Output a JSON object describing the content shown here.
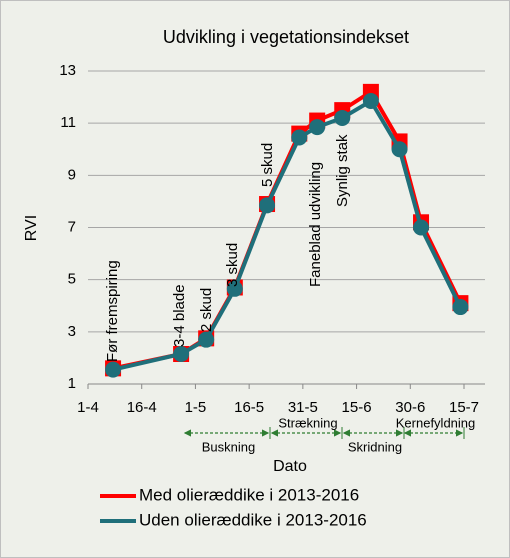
{
  "chart_data": {
    "type": "line",
    "title": "Udvikling i vegetationsindekset",
    "x_label": "Dato",
    "y_label": "RVI",
    "x": [
      98,
      117,
      124,
      132,
      141,
      150,
      155,
      162,
      170,
      178,
      184,
      195
    ],
    "xlim": [
      91,
      196
    ],
    "xticks": [
      {
        "value": 91,
        "label": "1-4"
      },
      {
        "value": 106,
        "label": "16-4"
      },
      {
        "value": 121,
        "label": "1-5"
      },
      {
        "value": 136,
        "label": "16-5"
      },
      {
        "value": 151,
        "label": "31-5"
      },
      {
        "value": 166,
        "label": "15-6"
      },
      {
        "value": 181,
        "label": "30-6"
      },
      {
        "value": 196,
        "label": "15-7"
      }
    ],
    "ylim": [
      1,
      13
    ],
    "yticks": [
      1,
      3,
      5,
      7,
      9,
      11,
      13
    ],
    "grid": true,
    "series": [
      {
        "name": "Med olieræddike i 2013-2016",
        "color": "#ff0000",
        "marker": "square",
        "values": [
          1.6,
          2.15,
          2.75,
          4.7,
          7.9,
          10.6,
          11.1,
          11.5,
          12.2,
          10.3,
          7.2,
          4.1
        ]
      },
      {
        "name": "Uden olieræddike i 2013-2016",
        "color": "#1f6f7a",
        "marker": "circle",
        "values": [
          1.55,
          2.15,
          2.7,
          4.65,
          7.85,
          10.45,
          10.85,
          11.2,
          11.85,
          10.0,
          7.0,
          3.95
        ]
      }
    ],
    "annotations": [
      "Før fremspiring",
      "3-4 blade",
      "2 skud",
      "3 skud",
      "5 skud",
      "Faneblad udvikling",
      "Synlig stak"
    ],
    "phases": [
      "Buskning",
      "Strækning",
      "Skridning",
      "Kernefyldning"
    ]
  }
}
